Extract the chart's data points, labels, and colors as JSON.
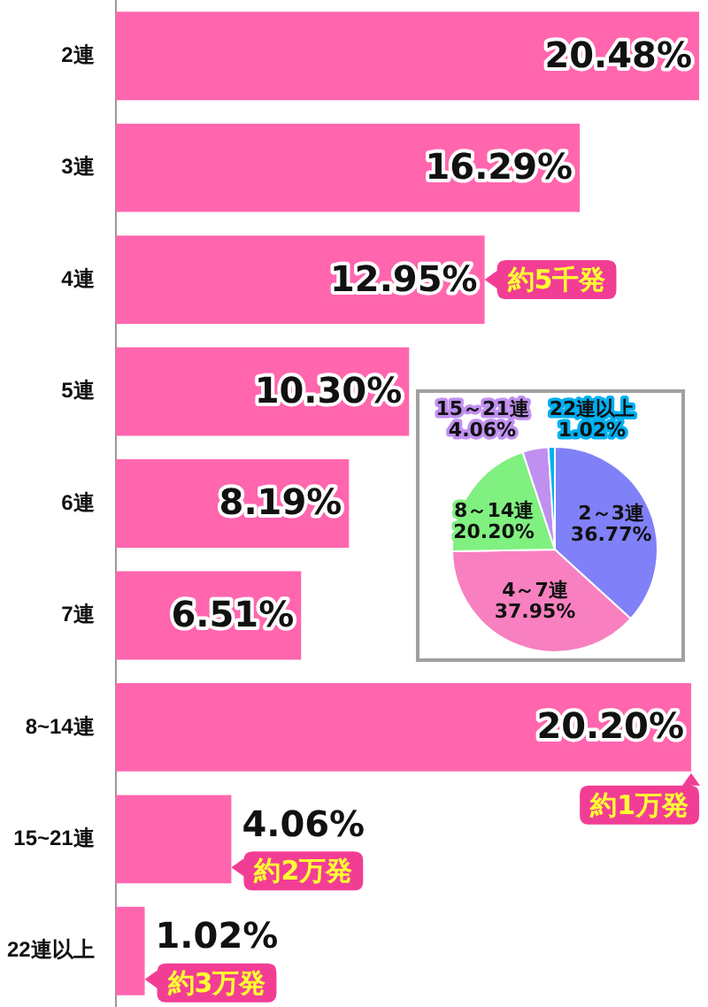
{
  "chart_data": [
    {
      "type": "bar",
      "orientation": "horizontal",
      "categories": [
        "2連",
        "3連",
        "4連",
        "5連",
        "6連",
        "7連",
        "8~14連",
        "15~21連",
        "22連以上"
      ],
      "values": [
        20.48,
        16.29,
        12.95,
        10.3,
        8.19,
        6.51,
        20.2,
        4.06,
        1.02
      ],
      "color": "#ff66ae",
      "value_labels": [
        "20.48%",
        "16.29%",
        "12.95%",
        "10.30%",
        "8.19%",
        "6.51%",
        "20.20%",
        "4.06%",
        "1.02%"
      ],
      "tick_labels": "y",
      "annotations": [
        {
          "text": "約5千発",
          "x": 12.95,
          "y": "4連"
        },
        {
          "text": "約1万発",
          "x": 20.2,
          "y": "8~14連"
        },
        {
          "text": "約2万発",
          "x": 4.06,
          "y": "15~21連"
        },
        {
          "text": "約3万発",
          "x": 1.02,
          "y": "22連以上"
        }
      ]
    },
    {
      "type": "pie",
      "categories": [
        "2～3連",
        "4～7連",
        "8～14連",
        "15～21連",
        "22連以上"
      ],
      "values": [
        36.77,
        37.95,
        20.2,
        4.06,
        1.02
      ],
      "colors": [
        "#8080f8",
        "#f880c0",
        "#80f080",
        "#c090f0",
        "#00b0f0"
      ],
      "value_labels": [
        "36.77%",
        "37.95%",
        "20.20%",
        "4.06%",
        "1.02%"
      ]
    }
  ]
}
